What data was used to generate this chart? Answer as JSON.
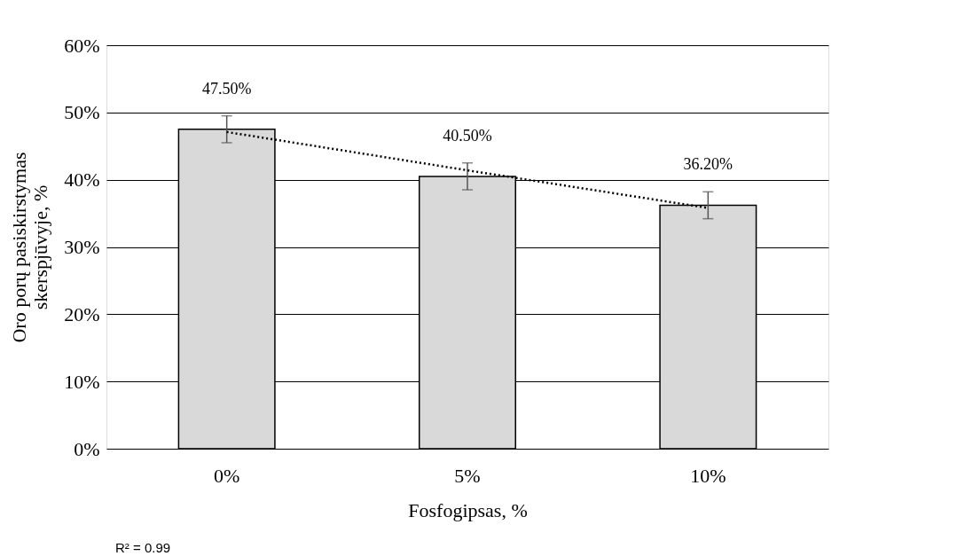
{
  "chart_data": {
    "type": "bar",
    "xlabel": "Fosfogipsas, %",
    "ylabel": "Oro porų pasiskirstymas skerspjūvyje, %",
    "categories": [
      "0%",
      "5%",
      "10%"
    ],
    "series": [
      {
        "color": "#d9d9d9",
        "values": [
          47.5,
          40.5,
          36.2
        ],
        "errors": [
          2,
          2,
          2
        ],
        "value_labels": [
          "47.50%",
          "40.50%",
          "36.20%"
        ]
      },
      {
        "type": "line",
        "color": "#000000",
        "line_style": "dotted",
        "values": [
          47.1,
          41.4,
          35.8
        ]
      }
    ],
    "ylim": [
      0,
      60
    ],
    "yticks": [
      {
        "value": 0,
        "label": "0%"
      },
      {
        "value": 10,
        "label": "10%"
      },
      {
        "value": 20,
        "label": "20%"
      },
      {
        "value": 30,
        "label": "30%"
      },
      {
        "value": 40,
        "label": "40%"
      },
      {
        "value": 50,
        "label": "50%"
      },
      {
        "value": 60,
        "label": "60%"
      }
    ],
    "grid": "y",
    "annotations": [
      "R² = 0.99"
    ]
  }
}
